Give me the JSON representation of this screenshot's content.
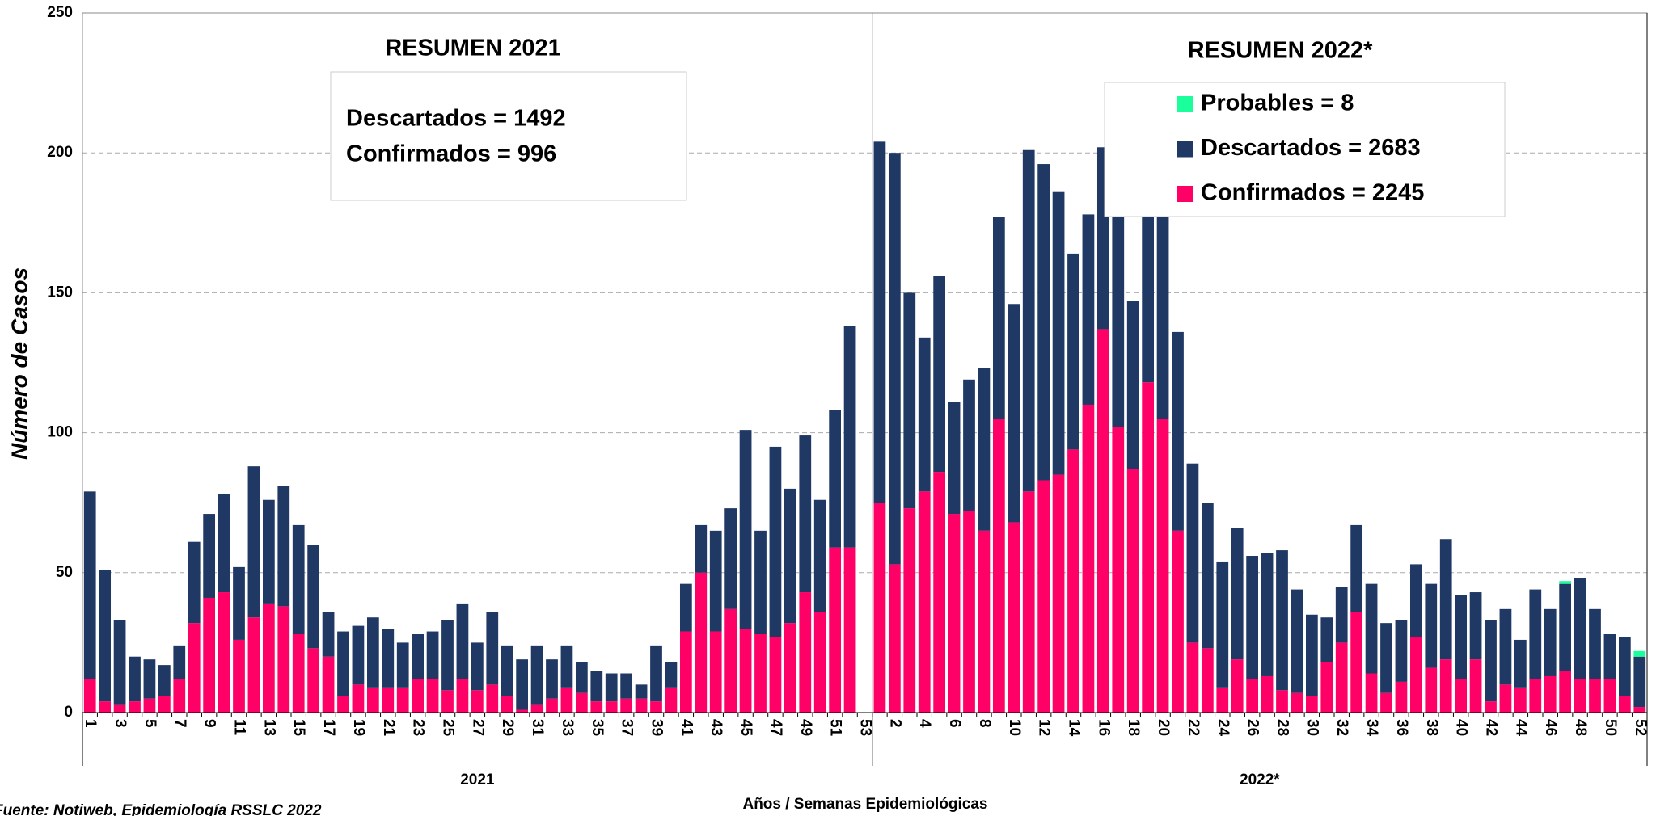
{
  "chart_data": {
    "type": "stacked_bar",
    "ylabel": "Número de Casos",
    "xlabel": "Años / Semanas Epidemiológicas",
    "source": "Fuente: Notiweb, Epidemiología RSSLC 2022",
    "annotations": [
      "RESUMEN 2021",
      "Descartados = 1492",
      "Confirmados = 996",
      "RESUMEN 2022*"
    ],
    "groups": [
      {
        "label": "2021",
        "categories": [
          "1",
          null,
          "3",
          null,
          "5",
          null,
          "7",
          null,
          "9",
          null,
          "11",
          null,
          "13",
          null,
          "15",
          null,
          "17",
          null,
          "19",
          null,
          "21",
          null,
          "23",
          null,
          "25",
          null,
          "27",
          null,
          "29",
          null,
          "31",
          null,
          "33",
          null,
          "35",
          null,
          "37",
          null,
          "39",
          null,
          "41",
          null,
          "43",
          null,
          "45",
          null,
          "47",
          null,
          "49",
          null,
          "51",
          null,
          "53"
        ]
      },
      {
        "label": "2022*",
        "categories": [
          null,
          "2",
          null,
          "4",
          null,
          "6",
          null,
          "8",
          null,
          "10",
          null,
          "12",
          null,
          "14",
          null,
          "16",
          null,
          "18",
          null,
          "20",
          null,
          "22",
          null,
          "24",
          null,
          "26",
          null,
          "28",
          null,
          "30",
          null,
          "32",
          null,
          "34",
          null,
          "36",
          null,
          "38",
          null,
          "40",
          null,
          "42",
          null,
          "44",
          null,
          "46",
          null,
          "48",
          null,
          "50",
          null,
          "52"
        ]
      }
    ],
    "series": [
      {
        "name": "Confirmados = 2245",
        "color": "#ff0066",
        "values": [
          12,
          4,
          3,
          4,
          5,
          6,
          12,
          32,
          41,
          43,
          26,
          34,
          39,
          38,
          28,
          23,
          20,
          6,
          10,
          9,
          9,
          9,
          12,
          12,
          8,
          12,
          8,
          10,
          6,
          1,
          3,
          5,
          9,
          7,
          4,
          4,
          5,
          5,
          4,
          9,
          29,
          50,
          29,
          37,
          30,
          28,
          27,
          32,
          43,
          36,
          59,
          59,
          null,
          75,
          53,
          73,
          79,
          86,
          71,
          72,
          65,
          105,
          68,
          79,
          83,
          85,
          94,
          110,
          137,
          102,
          87,
          118,
          105,
          65,
          25,
          23,
          9,
          19,
          12,
          13,
          8,
          7,
          6,
          18,
          25,
          36,
          14,
          7,
          11,
          27,
          16,
          19,
          12,
          19,
          4,
          10,
          9,
          12,
          13,
          15,
          12,
          12,
          12,
          6,
          2
        ]
      },
      {
        "name": "Descartados = 2683",
        "color": "#1f3864",
        "values": [
          67,
          47,
          30,
          16,
          14,
          11,
          12,
          29,
          30,
          35,
          26,
          54,
          37,
          43,
          39,
          37,
          16,
          23,
          21,
          25,
          21,
          16,
          16,
          17,
          25,
          27,
          17,
          26,
          18,
          18,
          21,
          14,
          15,
          11,
          11,
          10,
          9,
          5,
          20,
          9,
          17,
          17,
          36,
          36,
          71,
          37,
          68,
          48,
          56,
          40,
          49,
          79,
          null,
          129,
          147,
          77,
          55,
          70,
          40,
          47,
          58,
          72,
          78,
          122,
          113,
          101,
          70,
          68,
          65,
          88,
          60,
          67,
          80,
          71,
          64,
          52,
          45,
          47,
          44,
          44,
          50,
          37,
          29,
          16,
          20,
          31,
          32,
          25,
          22,
          26,
          30,
          43,
          30,
          24,
          29,
          27,
          17,
          32,
          24,
          31,
          36,
          25,
          16,
          21,
          18
        ]
      },
      {
        "name": "Probables = 8",
        "color": "#1aff9c",
        "values": [
          0,
          0,
          0,
          0,
          0,
          0,
          0,
          0,
          0,
          0,
          0,
          0,
          0,
          0,
          0,
          0,
          0,
          0,
          0,
          0,
          0,
          0,
          0,
          0,
          0,
          0,
          0,
          0,
          0,
          0,
          0,
          0,
          0,
          0,
          0,
          0,
          0,
          0,
          0,
          0,
          0,
          0,
          0,
          0,
          0,
          0,
          0,
          0,
          0,
          0,
          0,
          0,
          null,
          0,
          0,
          0,
          0,
          0,
          0,
          0,
          0,
          0,
          0,
          0,
          0,
          0,
          0,
          0,
          0,
          0,
          0,
          0,
          0,
          0,
          0,
          0,
          0,
          0,
          0,
          0,
          0,
          0,
          0,
          0,
          0,
          0,
          0,
          0,
          0,
          0,
          0,
          0,
          0,
          0,
          0,
          0,
          0,
          0,
          0,
          1,
          0,
          0,
          0,
          0,
          2,
          5
        ]
      }
    ],
    "ylim": [
      0,
      250
    ],
    "yticks": [
      0,
      50,
      100,
      150,
      200,
      250
    ],
    "grid": true
  }
}
